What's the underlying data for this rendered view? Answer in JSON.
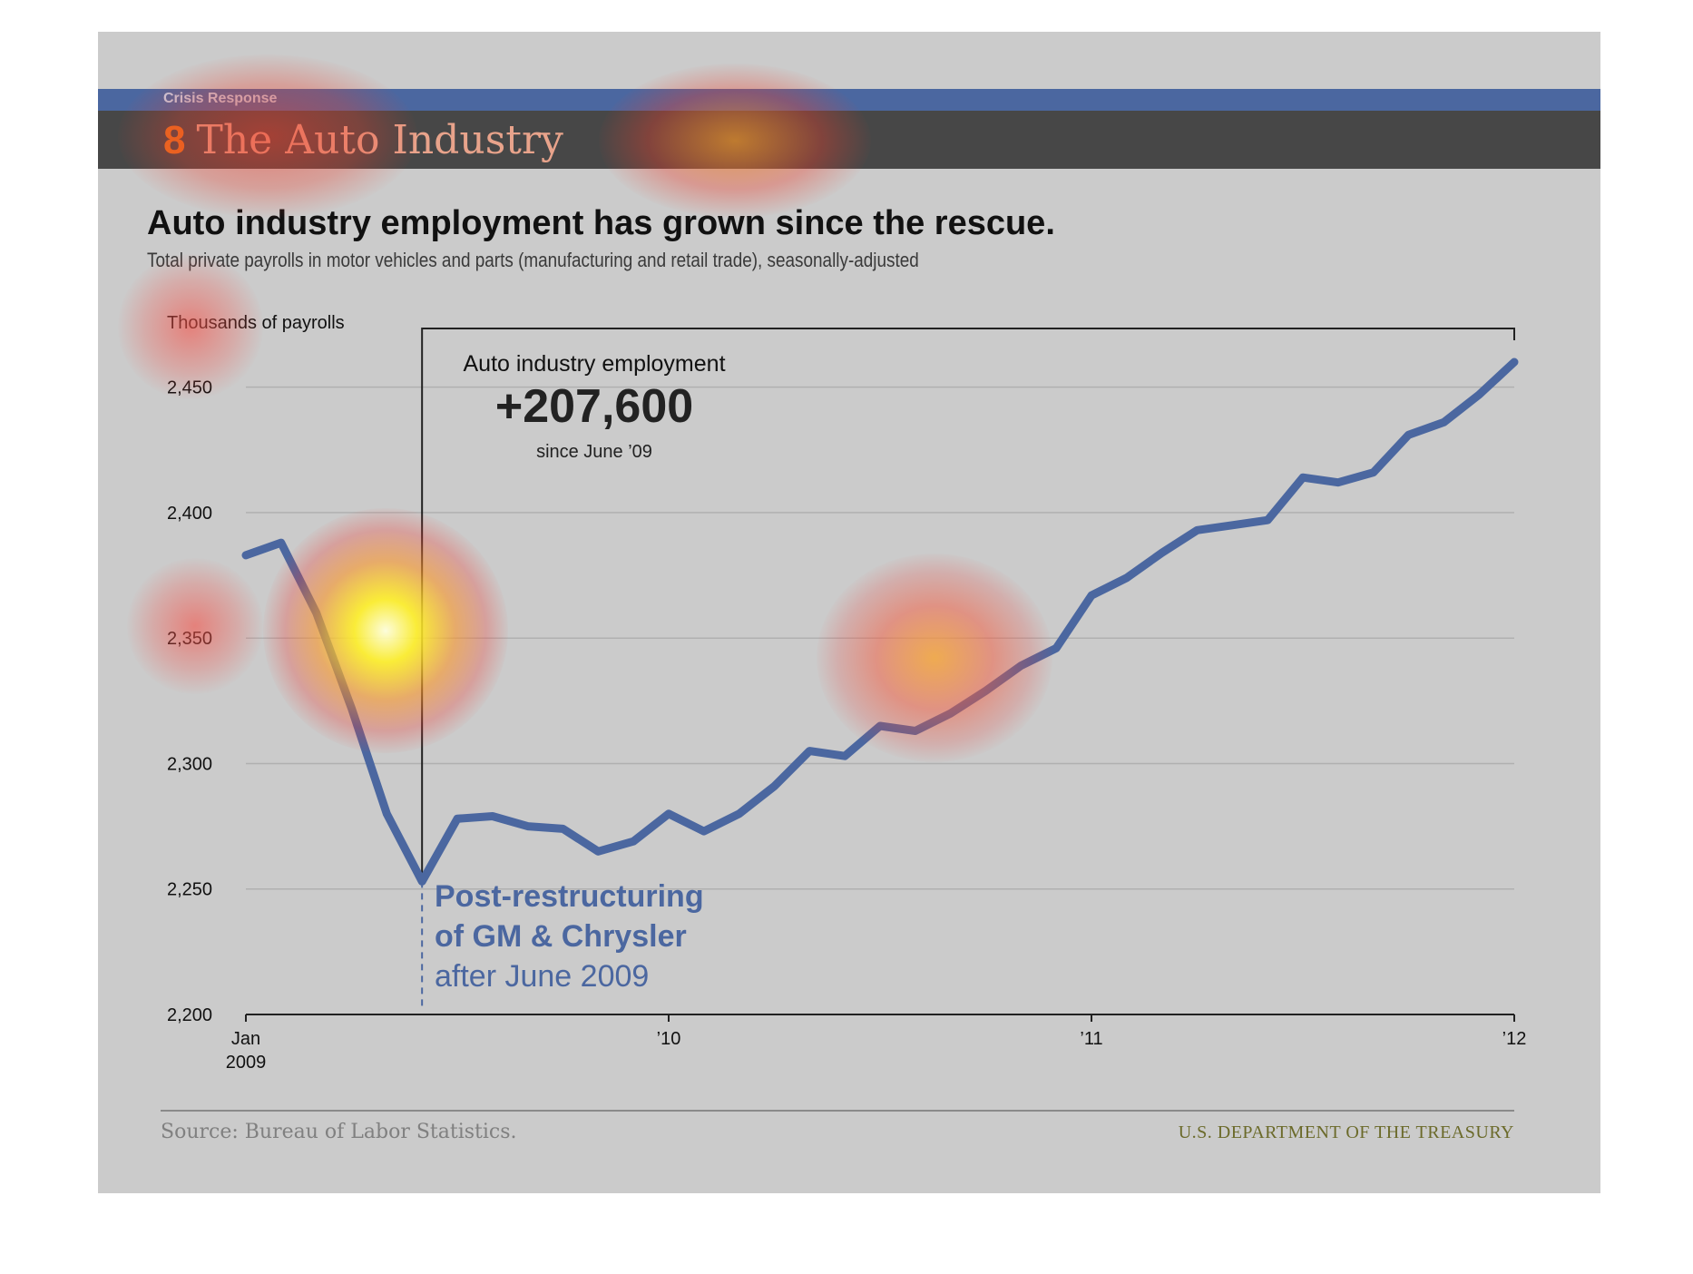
{
  "header": {
    "kicker": "Crisis Response",
    "section_number": "8",
    "section_title": "The Auto Industry"
  },
  "headline": "Auto industry employment has grown since the rescue.",
  "subhead": "Total private payrolls in motor vehicles and parts (manufacturing and retail trade), seasonally-adjusted",
  "callout": {
    "label": "Auto industry employment",
    "value": "+207,600",
    "since": "since June ’09"
  },
  "annotation": {
    "line1": "Post-restructuring",
    "line2": "of GM & Chrysler",
    "line3": "after June 2009"
  },
  "footer": {
    "source": "Source: Bureau of Labor Statistics.",
    "agency": "U.S. DEPARTMENT OF THE TREASURY"
  },
  "colors": {
    "line": "#4b67a0",
    "background": "#cbcbcb",
    "header_band": "#474747",
    "accent_band": "#4b67a0",
    "section_number": "#e8701e"
  },
  "chart_data": {
    "type": "line",
    "ylabel": "Thousands of payrolls",
    "ylim": [
      2200,
      2460
    ],
    "yticks": [
      2200,
      2250,
      2300,
      2350,
      2400,
      2450
    ],
    "ytick_labels": [
      "2,200",
      "2,250",
      "2,300",
      "2,350",
      "2,400",
      "2,450"
    ],
    "xlim": [
      "2009-01",
      "2012-01"
    ],
    "xticks": [
      {
        "x": "2009-01",
        "label": "Jan",
        "label2": "2009"
      },
      {
        "x": "2010-01",
        "label": "’10",
        "label2": ""
      },
      {
        "x": "2011-01",
        "label": "’11",
        "label2": ""
      },
      {
        "x": "2012-01",
        "label": "’12",
        "label2": ""
      }
    ],
    "grid": true,
    "event": {
      "x": "2009-06",
      "label": "Post-restructuring of GM & Chrysler after June 2009"
    },
    "series": [
      {
        "x": [
          "2009-01",
          "2009-02",
          "2009-03",
          "2009-04",
          "2009-05",
          "2009-06",
          "2009-07",
          "2009-08",
          "2009-09",
          "2009-10",
          "2009-11",
          "2009-12",
          "2010-01",
          "2010-02",
          "2010-03",
          "2010-04",
          "2010-05",
          "2010-06",
          "2010-07",
          "2010-08",
          "2010-09",
          "2010-10",
          "2010-11",
          "2010-12",
          "2011-01",
          "2011-02",
          "2011-03",
          "2011-04",
          "2011-05",
          "2011-06",
          "2011-07",
          "2011-08",
          "2011-09",
          "2011-10",
          "2011-11",
          "2011-12",
          "2012-01"
        ],
        "values": [
          2383,
          2388,
          2360,
          2322,
          2280,
          2253,
          2278,
          2279,
          2275,
          2274,
          2265,
          2269,
          2280,
          2273,
          2280,
          2291,
          2305,
          2303,
          2315,
          2313,
          2320,
          2329,
          2339,
          2346,
          2367,
          2374,
          2384,
          2393,
          2395,
          2397,
          2414,
          2412,
          2416,
          2431,
          2436,
          2447,
          2460
        ]
      }
    ]
  }
}
